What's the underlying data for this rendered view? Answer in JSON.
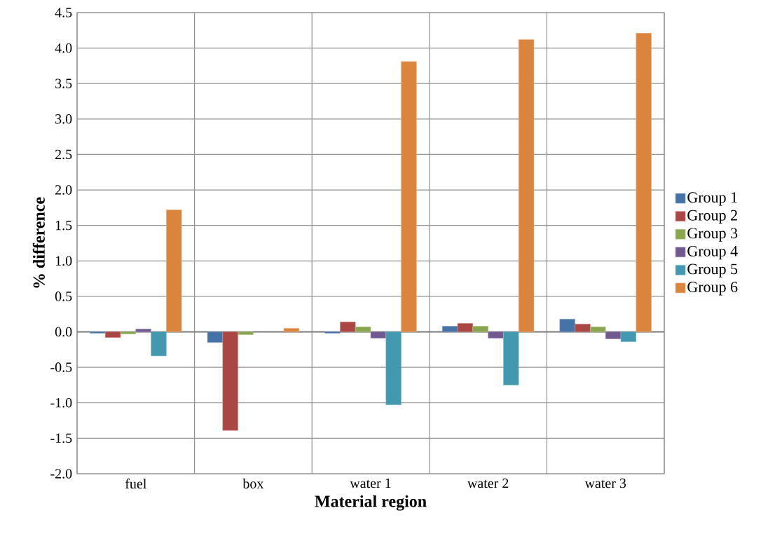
{
  "chart_data": {
    "type": "bar",
    "xlabel": "Material region",
    "ylabel": "% difference",
    "categories": [
      "fuel",
      "box",
      "water 1",
      "water 2",
      "water 3"
    ],
    "series": [
      {
        "name": "Group 1",
        "color": "#4572a7",
        "values": [
          -0.02,
          -0.15,
          -0.02,
          0.08,
          0.18
        ]
      },
      {
        "name": "Group 2",
        "color": "#aa4643",
        "values": [
          -0.08,
          -1.39,
          0.14,
          0.12,
          0.11
        ]
      },
      {
        "name": "Group 3",
        "color": "#89a54e",
        "values": [
          -0.03,
          -0.04,
          0.07,
          0.08,
          0.07
        ]
      },
      {
        "name": "Group 4",
        "color": "#71588f",
        "values": [
          0.04,
          null,
          -0.09,
          -0.09,
          -0.1
        ]
      },
      {
        "name": "Group 5",
        "color": "#4198af",
        "values": [
          -0.34,
          null,
          -1.03,
          -0.75,
          -0.14
        ]
      },
      {
        "name": "Group 6",
        "color": "#db843d",
        "values": [
          1.72,
          0.05,
          3.81,
          4.12,
          4.21
        ]
      }
    ],
    "ylim": [
      -2.0,
      4.5
    ],
    "yticks": [
      {
        "value": -2.0,
        "label": "-2.0"
      },
      {
        "value": -1.5,
        "label": "-1.5"
      },
      {
        "value": -1.0,
        "label": "-1.0"
      },
      {
        "value": -0.5,
        "label": "-0.5"
      },
      {
        "value": 0.0,
        "label": "0.0"
      },
      {
        "value": 0.5,
        "label": "0.5"
      },
      {
        "value": 1.0,
        "label": "1.0"
      },
      {
        "value": 1.5,
        "label": "1.5"
      },
      {
        "value": 2.0,
        "label": "2.0"
      },
      {
        "value": 2.5,
        "label": "2.5"
      },
      {
        "value": 3.0,
        "label": "3.0"
      },
      {
        "value": 3.5,
        "label": "3.5"
      },
      {
        "value": 4.0,
        "label": "4.0"
      },
      {
        "value": 4.5,
        "label": "4.5"
      }
    ],
    "grid": true,
    "legend": "right"
  }
}
